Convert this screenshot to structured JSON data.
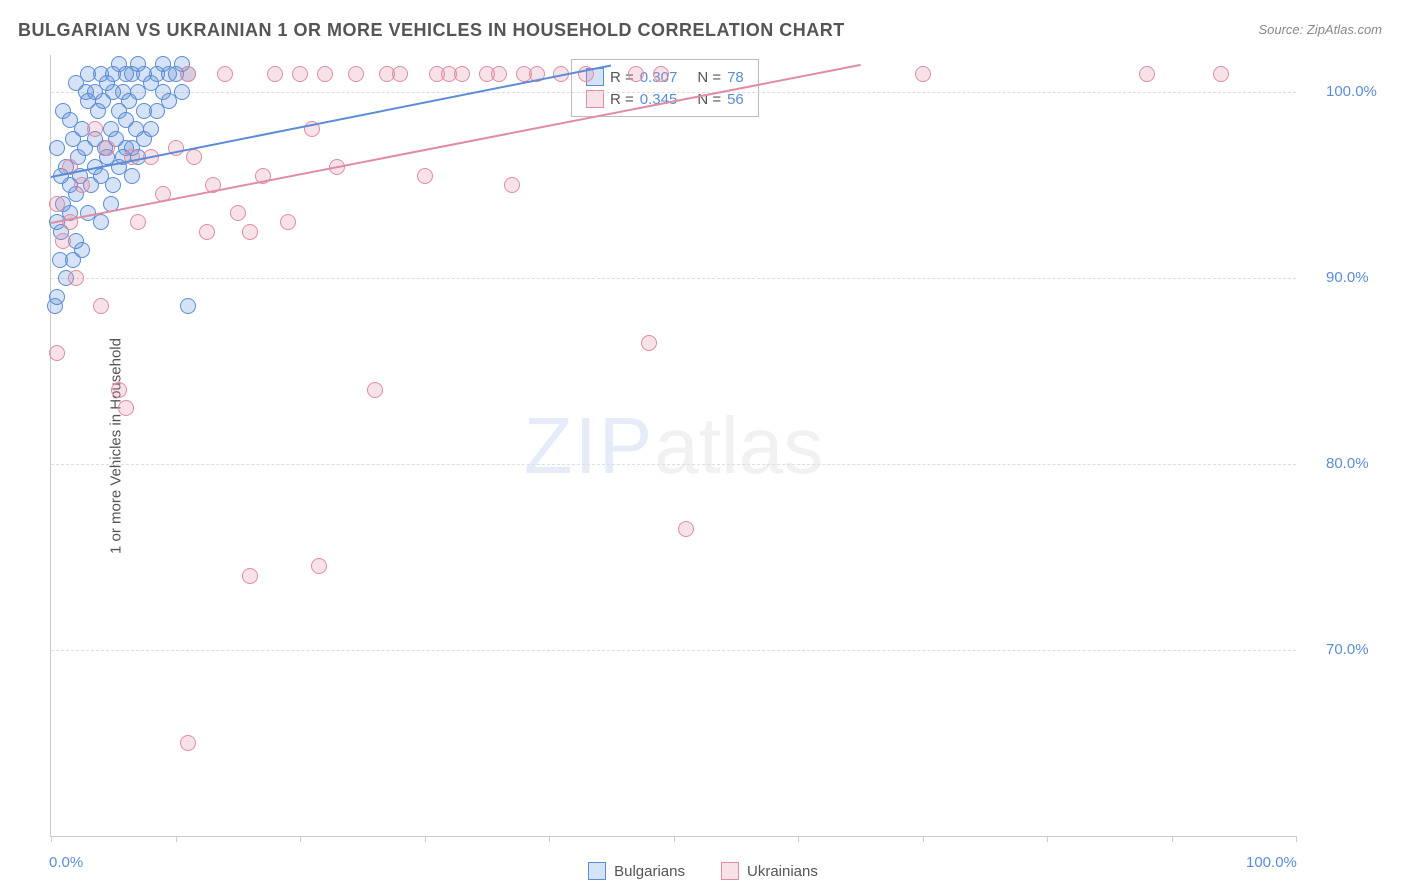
{
  "title": "BULGARIAN VS UKRAINIAN 1 OR MORE VEHICLES IN HOUSEHOLD CORRELATION CHART",
  "source": "Source: ZipAtlas.com",
  "y_axis_label": "1 or more Vehicles in Household",
  "watermark": {
    "zip": "ZIP",
    "atlas": "atlas"
  },
  "chart": {
    "type": "scatter",
    "background_color": "#ffffff",
    "grid_color": "#dddddd",
    "axis_color": "#cccccc",
    "tick_label_color": "#5b8dd6",
    "tick_fontsize": 15,
    "xlim": [
      0,
      100
    ],
    "ylim": [
      60,
      102
    ],
    "y_ticks": [
      70,
      80,
      90,
      100
    ],
    "y_tick_labels": [
      "70.0%",
      "80.0%",
      "90.0%",
      "100.0%"
    ],
    "x_ticks": [
      0,
      10,
      20,
      30,
      40,
      50,
      60,
      70,
      80,
      90,
      100
    ],
    "x_tick_labels_shown": {
      "0": "0.0%",
      "100": "100.0%"
    },
    "marker_radius": 8,
    "marker_fill_opacity": 0.25,
    "marker_stroke_width": 1.5,
    "series": [
      {
        "name": "Bulgarians",
        "color": "#5b8dd6",
        "fill": "rgba(91,141,214,0.25)",
        "r": 0.307,
        "n": 78,
        "trend": {
          "x1": 0,
          "y1": 95.5,
          "x2": 45,
          "y2": 101.5
        },
        "points": [
          [
            0.3,
            88.5
          ],
          [
            0.5,
            93.0
          ],
          [
            0.7,
            91.0
          ],
          [
            0.8,
            95.5
          ],
          [
            0.5,
            97.0
          ],
          [
            1.0,
            94.0
          ],
          [
            1.2,
            96.0
          ],
          [
            1.0,
            99.0
          ],
          [
            1.5,
            95.0
          ],
          [
            1.5,
            93.5
          ],
          [
            1.8,
            97.5
          ],
          [
            2.0,
            94.5
          ],
          [
            2.2,
            96.5
          ],
          [
            2.5,
            98.0
          ],
          [
            2.0,
            100.5
          ],
          [
            2.3,
            95.5
          ],
          [
            2.7,
            97.0
          ],
          [
            3.0,
            99.5
          ],
          [
            3.0,
            101.0
          ],
          [
            3.2,
            95.0
          ],
          [
            3.5,
            100.0
          ],
          [
            3.5,
            97.5
          ],
          [
            3.8,
            99.0
          ],
          [
            4.0,
            101.0
          ],
          [
            4.0,
            95.5
          ],
          [
            4.2,
            99.5
          ],
          [
            4.5,
            100.5
          ],
          [
            4.5,
            96.5
          ],
          [
            4.8,
            98.0
          ],
          [
            5.0,
            101.0
          ],
          [
            5.0,
            100.0
          ],
          [
            5.2,
            97.5
          ],
          [
            5.5,
            99.0
          ],
          [
            5.5,
            101.5
          ],
          [
            5.8,
            100.0
          ],
          [
            6.0,
            98.5
          ],
          [
            6.0,
            101.0
          ],
          [
            6.3,
            99.5
          ],
          [
            6.5,
            101.0
          ],
          [
            6.5,
            97.0
          ],
          [
            7.0,
            100.0
          ],
          [
            7.0,
            101.5
          ],
          [
            7.5,
            99.0
          ],
          [
            7.5,
            101.0
          ],
          [
            8.0,
            100.5
          ],
          [
            8.0,
            98.0
          ],
          [
            8.5,
            101.0
          ],
          [
            9.0,
            100.0
          ],
          [
            9.0,
            101.5
          ],
          [
            9.5,
            99.5
          ],
          [
            10.0,
            101.0
          ],
          [
            10.5,
            100.0
          ],
          [
            11.0,
            88.5
          ],
          [
            2.0,
            92.0
          ],
          [
            1.2,
            90.0
          ],
          [
            0.5,
            89.0
          ],
          [
            1.8,
            91.0
          ],
          [
            3.0,
            93.5
          ],
          [
            4.0,
            93.0
          ],
          [
            2.5,
            91.5
          ],
          [
            5.5,
            96.0
          ],
          [
            6.0,
            97.0
          ],
          [
            6.5,
            95.5
          ],
          [
            7.0,
            96.5
          ],
          [
            4.8,
            94.0
          ],
          [
            0.8,
            92.5
          ],
          [
            1.5,
            98.5
          ],
          [
            2.8,
            100.0
          ],
          [
            3.5,
            96.0
          ],
          [
            4.3,
            97.0
          ],
          [
            5.0,
            95.0
          ],
          [
            5.8,
            96.5
          ],
          [
            6.8,
            98.0
          ],
          [
            7.5,
            97.5
          ],
          [
            8.5,
            99.0
          ],
          [
            9.5,
            101.0
          ],
          [
            10.5,
            101.5
          ],
          [
            11.0,
            101.0
          ]
        ]
      },
      {
        "name": "Ukrainians",
        "color": "#e08ca4",
        "fill": "rgba(224,140,164,0.25)",
        "r": 0.345,
        "n": 56,
        "trend": {
          "x1": 0,
          "y1": 93.0,
          "x2": 65,
          "y2": 101.5
        },
        "points": [
          [
            0.5,
            86.0
          ],
          [
            1.0,
            92.0
          ],
          [
            1.5,
            93.0
          ],
          [
            2.0,
            90.0
          ],
          [
            4.0,
            88.5
          ],
          [
            5.5,
            84.0
          ],
          [
            6.0,
            83.0
          ],
          [
            7.0,
            93.0
          ],
          [
            8.0,
            96.5
          ],
          [
            10.0,
            97.0
          ],
          [
            11.0,
            101.0
          ],
          [
            12.5,
            92.5
          ],
          [
            13.0,
            95.0
          ],
          [
            14.0,
            101.0
          ],
          [
            15.0,
            93.5
          ],
          [
            16.0,
            92.5
          ],
          [
            17.0,
            95.5
          ],
          [
            18.0,
            101.0
          ],
          [
            19.0,
            93.0
          ],
          [
            20.0,
            101.0
          ],
          [
            21.0,
            98.0
          ],
          [
            22.0,
            101.0
          ],
          [
            23.0,
            96.0
          ],
          [
            24.5,
            101.0
          ],
          [
            26.0,
            84.0
          ],
          [
            27.0,
            101.0
          ],
          [
            28.0,
            101.0
          ],
          [
            30.0,
            95.5
          ],
          [
            31.0,
            101.0
          ],
          [
            32.0,
            101.0
          ],
          [
            33.0,
            101.0
          ],
          [
            35.0,
            101.0
          ],
          [
            36.0,
            101.0
          ],
          [
            37.0,
            95.0
          ],
          [
            38.0,
            101.0
          ],
          [
            39.0,
            101.0
          ],
          [
            41.0,
            101.0
          ],
          [
            43.0,
            101.0
          ],
          [
            47.0,
            101.0
          ],
          [
            48.0,
            86.5
          ],
          [
            49.0,
            101.0
          ],
          [
            51.0,
            76.5
          ],
          [
            0.5,
            94.0
          ],
          [
            1.5,
            96.0
          ],
          [
            2.5,
            95.0
          ],
          [
            3.5,
            98.0
          ],
          [
            4.5,
            97.0
          ],
          [
            6.5,
            96.5
          ],
          [
            9.0,
            94.5
          ],
          [
            11.5,
            96.5
          ],
          [
            70.0,
            101.0
          ],
          [
            88.0,
            101.0
          ],
          [
            94.0,
            101.0
          ],
          [
            11.0,
            65.0
          ],
          [
            16.0,
            74.0
          ],
          [
            21.5,
            74.5
          ]
        ]
      }
    ]
  },
  "legend_box": {
    "rows": [
      {
        "swatch_fill": "rgba(91,141,214,0.25)",
        "swatch_border": "#5b8dd6",
        "r_label": "R =",
        "r_val": "0.307",
        "n_label": "N =",
        "n_val": "78"
      },
      {
        "swatch_fill": "rgba(224,140,164,0.25)",
        "swatch_border": "#e08ca4",
        "r_label": "R =",
        "r_val": "0.345",
        "n_label": "N =",
        "n_val": "56"
      }
    ]
  },
  "bottom_legend": [
    {
      "swatch_fill": "rgba(91,141,214,0.25)",
      "swatch_border": "#5b8dd6",
      "label": "Bulgarians"
    },
    {
      "swatch_fill": "rgba(224,140,164,0.25)",
      "swatch_border": "#e08ca4",
      "label": "Ukrainians"
    }
  ]
}
